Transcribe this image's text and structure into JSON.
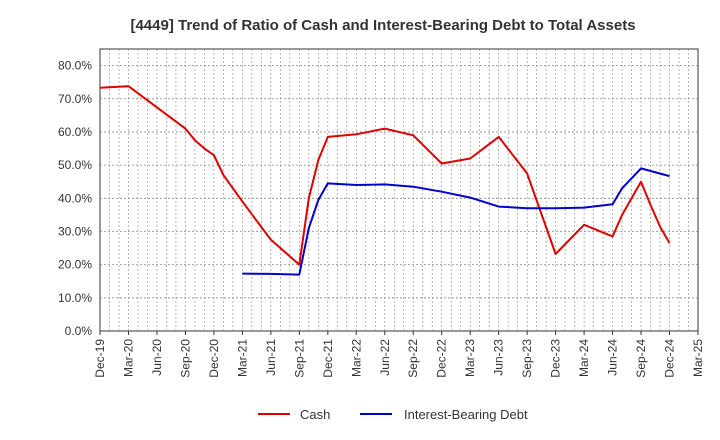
{
  "chart_data": {
    "type": "line",
    "title": "[4449]  Trend of Ratio of Cash and Interest-Bearing Debt to Total Assets",
    "xlabel": "",
    "ylabel": "",
    "ylim": [
      0,
      85
    ],
    "x_ticks": [
      "Dec-19",
      "Mar-20",
      "Jun-20",
      "Sep-20",
      "Dec-20",
      "Mar-21",
      "Jun-21",
      "Sep-21",
      "Dec-21",
      "Mar-22",
      "Jun-22",
      "Sep-22",
      "Dec-22",
      "Mar-23",
      "Jun-23",
      "Sep-23",
      "Dec-23",
      "Mar-24",
      "Jun-24",
      "Sep-24",
      "Dec-24",
      "Mar-25"
    ],
    "y_ticks": [
      "0.0%",
      "10.0%",
      "20.0%",
      "30.0%",
      "40.0%",
      "50.0%",
      "60.0%",
      "70.0%",
      "80.0%"
    ],
    "grid": true,
    "legend_position": "bottom",
    "series": [
      {
        "name": "Cash",
        "color": "#e00000",
        "points": [
          [
            "Dec-19",
            73.3
          ],
          [
            "Mar-20",
            73.8
          ],
          [
            "Sep-20",
            61.0
          ],
          [
            "Oct-20",
            57.5
          ],
          [
            "Nov-20",
            55.0
          ],
          [
            "Dec-20",
            53.0
          ],
          [
            "Jan-21",
            47.0
          ],
          [
            "Mar-21",
            39.0
          ],
          [
            "Jun-21",
            27.5
          ],
          [
            "Sep-21",
            20.0
          ],
          [
            "Oct-21",
            40.0
          ],
          [
            "Nov-21",
            51.5
          ],
          [
            "Dec-21",
            58.5
          ],
          [
            "Mar-22",
            59.3
          ],
          [
            "Jun-22",
            61.0
          ],
          [
            "Sep-22",
            59.0
          ],
          [
            "Dec-22",
            50.5
          ],
          [
            "Mar-23",
            52.0
          ],
          [
            "Jun-23",
            58.5
          ],
          [
            "Sep-23",
            47.5
          ],
          [
            "Dec-23",
            23.2
          ],
          [
            "Mar-24",
            32.0
          ],
          [
            "Jun-24",
            28.5
          ],
          [
            "Jul-24",
            35.0
          ],
          [
            "Sep-24",
            45.0
          ],
          [
            "Oct-24",
            38.0
          ],
          [
            "Nov-24",
            31.5
          ],
          [
            "Dec-24",
            26.5
          ]
        ]
      },
      {
        "name": "Interest-Bearing Debt",
        "color": "#0000d0",
        "points": [
          [
            "Mar-21",
            17.3
          ],
          [
            "Jun-21",
            17.2
          ],
          [
            "Sep-21",
            17.0
          ],
          [
            "Oct-21",
            31.0
          ],
          [
            "Nov-21",
            39.5
          ],
          [
            "Dec-21",
            44.5
          ],
          [
            "Mar-22",
            44.0
          ],
          [
            "Jun-22",
            44.2
          ],
          [
            "Sep-22",
            43.5
          ],
          [
            "Dec-22",
            42.0
          ],
          [
            "Mar-23",
            40.2
          ],
          [
            "Jun-23",
            37.5
          ],
          [
            "Sep-23",
            37.0
          ],
          [
            "Dec-23",
            37.0
          ],
          [
            "Mar-24",
            37.2
          ],
          [
            "Jun-24",
            38.2
          ],
          [
            "Jul-24",
            43.0
          ],
          [
            "Sep-24",
            49.0
          ],
          [
            "Dec-24",
            46.7
          ]
        ]
      }
    ]
  }
}
